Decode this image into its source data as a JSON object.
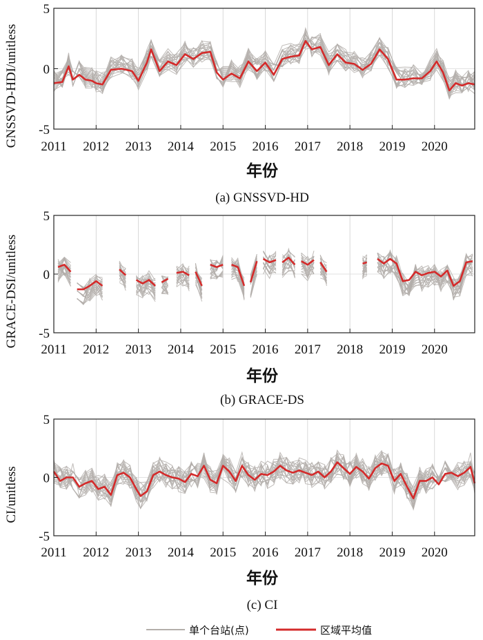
{
  "legend": {
    "station_label": "单个台站(点)",
    "mean_label": "区域平均值",
    "station_color": "#b3aeaa",
    "mean_color": "#d42a2a"
  },
  "chart_data": [
    {
      "type": "line",
      "caption": "(a) GNSSVD-HD",
      "xlabel": "年份",
      "ylabel": "GNSSVD-HDI/unitless",
      "xlim": [
        2011.0,
        2020.95
      ],
      "ylim": [
        -5,
        5
      ],
      "x_ticks": [
        "2011",
        "2012",
        "2013",
        "2014",
        "2015",
        "2016",
        "2017",
        "2018",
        "2019",
        "2020"
      ],
      "y_ticks": [
        "5",
        "0",
        "-5"
      ],
      "grid": true,
      "mean_series": {
        "name": "区域平均值",
        "x": [
          2011.0,
          2011.2,
          2011.35,
          2011.45,
          2011.6,
          2011.75,
          2011.9,
          2012.0,
          2012.15,
          2012.35,
          2012.6,
          2012.85,
          2013.0,
          2013.2,
          2013.3,
          2013.5,
          2013.7,
          2013.9,
          2014.1,
          2014.3,
          2014.5,
          2014.7,
          2014.85,
          2015.0,
          2015.2,
          2015.4,
          2015.6,
          2015.8,
          2016.0,
          2016.2,
          2016.4,
          2016.6,
          2016.8,
          2016.95,
          2017.1,
          2017.3,
          2017.5,
          2017.7,
          2017.9,
          2018.1,
          2018.3,
          2018.5,
          2018.7,
          2018.9,
          2019.1,
          2019.3,
          2019.5,
          2019.7,
          2019.9,
          2020.05,
          2020.2,
          2020.35,
          2020.5,
          2020.65,
          2020.8,
          2020.95
        ],
        "y": [
          -1.2,
          -1.1,
          0.2,
          -0.9,
          -0.5,
          -0.9,
          -1.0,
          -1.2,
          -1.3,
          -0.1,
          0.0,
          -0.2,
          -1.0,
          0.5,
          1.6,
          -0.2,
          0.6,
          0.3,
          1.2,
          0.8,
          1.3,
          1.4,
          -0.3,
          -0.9,
          -0.4,
          -0.8,
          0.6,
          -0.2,
          0.5,
          -0.5,
          0.8,
          1.0,
          1.1,
          2.3,
          1.6,
          1.8,
          0.3,
          1.2,
          0.5,
          0.4,
          -0.1,
          0.4,
          1.6,
          0.8,
          -0.9,
          -0.9,
          -0.8,
          -0.8,
          -0.2,
          0.6,
          -0.3,
          -1.8,
          -1.2,
          -1.4,
          -1.2,
          -1.3
        ]
      },
      "station_spread": 0.9,
      "station_count": 20
    },
    {
      "type": "line",
      "caption": "(b) GRACE-DS",
      "xlabel": "年份",
      "ylabel": "GRACE-DSI/unitless",
      "xlim": [
        2011.0,
        2020.95
      ],
      "ylim": [
        -5,
        5
      ],
      "x_ticks": [
        "2011",
        "2012",
        "2013",
        "2014",
        "2015",
        "2016",
        "2017",
        "2018",
        "2019",
        "2020"
      ],
      "y_ticks": [
        "5",
        "0",
        "-5"
      ],
      "grid": true,
      "mean_segments": [
        {
          "x": [
            2011.1,
            2011.25,
            2011.4
          ],
          "y": [
            0.6,
            0.8,
            0.2
          ]
        },
        {
          "x": [
            2011.55,
            2011.7,
            2011.85,
            2012.0,
            2012.15
          ],
          "y": [
            -1.3,
            -1.3,
            -1.0,
            -0.6,
            -1.0
          ]
        },
        {
          "x": [
            2012.55,
            2012.7
          ],
          "y": [
            0.4,
            -0.1
          ]
        },
        {
          "x": [
            2012.95,
            2013.1,
            2013.25,
            2013.4
          ],
          "y": [
            -0.5,
            -0.8,
            -0.5,
            -1.0
          ]
        },
        {
          "x": [
            2013.55,
            2013.7
          ],
          "y": [
            -0.7,
            -0.4
          ]
        },
        {
          "x": [
            2013.9,
            2014.05,
            2014.2
          ],
          "y": [
            0.1,
            0.2,
            -0.1
          ]
        },
        {
          "x": [
            2014.35,
            2014.5
          ],
          "y": [
            0.2,
            -1.0
          ]
        },
        {
          "x": [
            2014.7,
            2014.85,
            2015.0
          ],
          "y": [
            0.8,
            0.6,
            0.8
          ]
        },
        {
          "x": [
            2015.2,
            2015.35,
            2015.5
          ],
          "y": [
            0.8,
            0.6,
            -1.0
          ]
        },
        {
          "x": [
            2015.65,
            2015.8
          ],
          "y": [
            -0.7,
            1.1
          ]
        },
        {
          "x": [
            2015.95,
            2016.1,
            2016.25
          ],
          "y": [
            1.3,
            1.0,
            1.2
          ]
        },
        {
          "x": [
            2016.4,
            2016.55,
            2016.7
          ],
          "y": [
            1.0,
            1.4,
            0.8
          ]
        },
        {
          "x": [
            2016.85,
            2017.0,
            2017.15
          ],
          "y": [
            1.1,
            0.8,
            1.2
          ]
        },
        {
          "x": [
            2017.3,
            2017.45
          ],
          "y": [
            1.0,
            0.2
          ]
        },
        {
          "x": [
            2018.3,
            2018.4
          ],
          "y": [
            0.9,
            1.0
          ]
        },
        {
          "x": [
            2018.65,
            2018.8,
            2018.95,
            2019.1,
            2019.25,
            2019.4,
            2019.55,
            2019.7,
            2019.85,
            2020.0,
            2020.15,
            2020.3,
            2020.45,
            2020.6,
            2020.75,
            2020.9
          ],
          "y": [
            1.3,
            0.9,
            1.3,
            0.9,
            -0.6,
            -0.5,
            0.2,
            -0.1,
            0.1,
            0.2,
            -0.2,
            0.3,
            -1.0,
            -0.6,
            1.0,
            1.1
          ]
        }
      ],
      "station_spread": 1.0,
      "station_count": 20
    },
    {
      "type": "line",
      "caption": "(c) CI",
      "xlabel": "年份",
      "ylabel": "CI/unitless",
      "xlim": [
        2011.0,
        2020.95
      ],
      "ylim": [
        -5,
        5
      ],
      "x_ticks": [
        "2011",
        "2012",
        "2013",
        "2014",
        "2015",
        "2016",
        "2017",
        "2018",
        "2019",
        "2020"
      ],
      "y_ticks": [
        "5",
        "0",
        "-5"
      ],
      "grid": true,
      "mean_series": {
        "name": "区域平均值",
        "x": [
          2011.0,
          2011.15,
          2011.3,
          2011.45,
          2011.6,
          2011.75,
          2011.9,
          2012.05,
          2012.2,
          2012.35,
          2012.5,
          2012.65,
          2012.8,
          2012.95,
          2013.05,
          2013.2,
          2013.35,
          2013.5,
          2013.65,
          2013.8,
          2013.95,
          2014.1,
          2014.25,
          2014.4,
          2014.55,
          2014.7,
          2014.85,
          2015.0,
          2015.15,
          2015.3,
          2015.45,
          2015.6,
          2015.75,
          2015.9,
          2016.05,
          2016.2,
          2016.35,
          2016.5,
          2016.65,
          2016.8,
          2016.95,
          2017.1,
          2017.25,
          2017.4,
          2017.55,
          2017.7,
          2017.85,
          2018.0,
          2018.15,
          2018.3,
          2018.45,
          2018.6,
          2018.75,
          2018.9,
          2019.05,
          2019.2,
          2019.35,
          2019.5,
          2019.65,
          2019.8,
          2019.95,
          2020.1,
          2020.25,
          2020.4,
          2020.55,
          2020.7,
          2020.85,
          2020.95
        ],
        "y": [
          0.5,
          -0.3,
          0.0,
          0.0,
          -0.8,
          -0.5,
          -0.3,
          -1.0,
          -0.8,
          -1.5,
          0.2,
          0.4,
          0.0,
          -1.0,
          -1.6,
          -1.2,
          0.2,
          0.5,
          0.2,
          0.0,
          -0.1,
          -0.4,
          0.3,
          0.1,
          1.0,
          -0.2,
          -0.5,
          1.0,
          0.5,
          -0.3,
          1.0,
          0.2,
          -0.2,
          0.3,
          0.2,
          0.5,
          1.0,
          0.6,
          0.4,
          0.6,
          0.4,
          0.2,
          0.5,
          0.0,
          0.5,
          1.3,
          0.8,
          0.3,
          0.9,
          0.5,
          -0.1,
          0.8,
          1.2,
          1.0,
          -0.3,
          0.3,
          -0.8,
          -1.8,
          -0.3,
          -0.3,
          0.0,
          -0.6,
          0.3,
          0.4,
          0.1,
          0.4,
          0.9,
          -0.5
        ]
      },
      "station_spread": 1.1,
      "station_count": 20
    }
  ]
}
